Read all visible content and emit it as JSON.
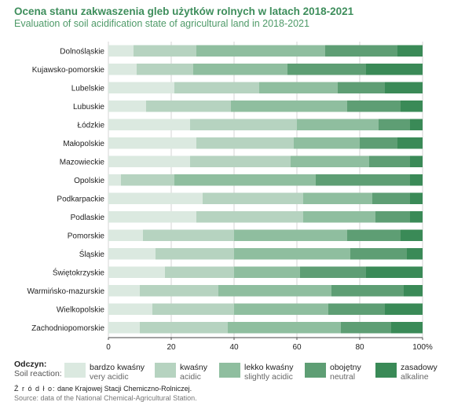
{
  "title": "Ocena stanu zakwaszenia gleb użytków rolnych w latach 2018-2021",
  "subtitle": "Evaluation of soil acidification state of agricultural land in 2018-2021",
  "legend": {
    "label_pl": "Odczyn:",
    "label_en": "Soil reaction:"
  },
  "source": {
    "label": "Ź r ó d ł o:",
    "text": "dane Krajowej Stacji Chemiczno-Rolniczej.",
    "text_en": "Source: data of the National Chemical-Agricultural Station."
  },
  "chart_data": {
    "type": "bar",
    "orientation": "horizontal",
    "stacked": true,
    "categories": [
      "Dolnośląskie",
      "Kujawsko-pomorskie",
      "Lubelskie",
      "Lubuskie",
      "Łódzkie",
      "Małopolskie",
      "Mazowieckie",
      "Opolskie",
      "Podkarpackie",
      "Podlaskie",
      "Pomorskie",
      "Śląskie",
      "Świętokrzyskie",
      "Warmińsko-mazurskie",
      "Wielkopolskie",
      "Zachodniopomorskie"
    ],
    "series": [
      {
        "name": "bardzo kwaśny",
        "name_en": "very acidic",
        "color": "#dbe9e0",
        "values": [
          8,
          9,
          21,
          12,
          26,
          28,
          26,
          4,
          30,
          28,
          11,
          15,
          18,
          10,
          14,
          10
        ]
      },
      {
        "name": "kwaśny",
        "name_en": "acidic",
        "color": "#b6d3c0",
        "values": [
          20,
          18,
          27,
          27,
          34,
          31,
          32,
          17,
          32,
          34,
          29,
          25,
          22,
          25,
          26,
          28
        ]
      },
      {
        "name": "lekko kwaśny",
        "name_en": "slightly acidic",
        "color": "#8fbe9f",
        "values": [
          41,
          30,
          25,
          37,
          26,
          21,
          25,
          45,
          22,
          23,
          36,
          37,
          21,
          36,
          30,
          36
        ]
      },
      {
        "name": "obojętny",
        "name_en": "neutral",
        "color": "#5e9e74",
        "values": [
          23,
          25,
          15,
          17,
          10,
          12,
          13,
          30,
          12,
          11,
          17,
          18,
          21,
          23,
          18,
          16
        ]
      },
      {
        "name": "zasadowy",
        "name_en": "alkaline",
        "color": "#3a8a57",
        "values": [
          8,
          18,
          12,
          7,
          4,
          8,
          4,
          4,
          4,
          4,
          7,
          5,
          18,
          6,
          12,
          10
        ]
      }
    ],
    "x_ticks": [
      "0",
      "20",
      "40",
      "60",
      "80",
      "100%"
    ],
    "xlim": [
      0,
      100
    ],
    "grid": true
  }
}
